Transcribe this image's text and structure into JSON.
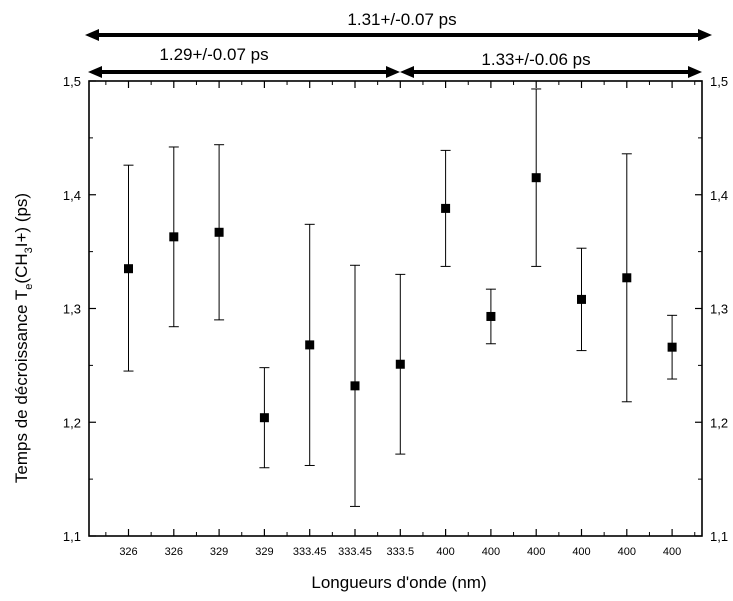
{
  "chart_data": {
    "type": "scatter",
    "title": "",
    "xlabel": "Longueurs d'onde (nm)",
    "ylabel": {
      "prefix": "Temps de décroissance T",
      "sub_e": "e",
      "mid": "(CH",
      "sub_3": "3",
      "suffix": "I+) (ps)"
    },
    "categories": [
      "326",
      "326",
      "329",
      "329",
      "333.45",
      "333.45",
      "333.5",
      "400",
      "400",
      "400",
      "400",
      "400",
      "400"
    ],
    "values": [
      1.335,
      1.363,
      1.367,
      1.204,
      1.268,
      1.232,
      1.251,
      1.388,
      1.293,
      1.415,
      1.308,
      1.327,
      1.266
    ],
    "error_low": [
      1.245,
      1.284,
      1.29,
      1.16,
      1.162,
      1.126,
      1.172,
      1.337,
      1.269,
      1.337,
      1.263,
      1.218,
      1.238
    ],
    "error_high": [
      1.426,
      1.442,
      1.444,
      1.248,
      1.374,
      1.338,
      1.33,
      1.439,
      1.317,
      1.493,
      1.353,
      1.436,
      1.294
    ],
    "ylim": [
      1.1,
      1.5
    ],
    "yticks": [
      "1,1",
      "1,2",
      "1,3",
      "1,4",
      "1,5"
    ],
    "yticks_right": [
      "1,1",
      "1,2",
      "1,3",
      "1,4",
      "1,5"
    ],
    "grid": false,
    "marker": "square",
    "color": "#000000",
    "annotations": [
      {
        "text": "1.31+/-0.07 ps",
        "span": "all"
      },
      {
        "text": "1.29+/-0.07 ps",
        "span": "326-333.5"
      },
      {
        "text": "1.33+/-0.06 ps",
        "span": "400"
      }
    ]
  }
}
